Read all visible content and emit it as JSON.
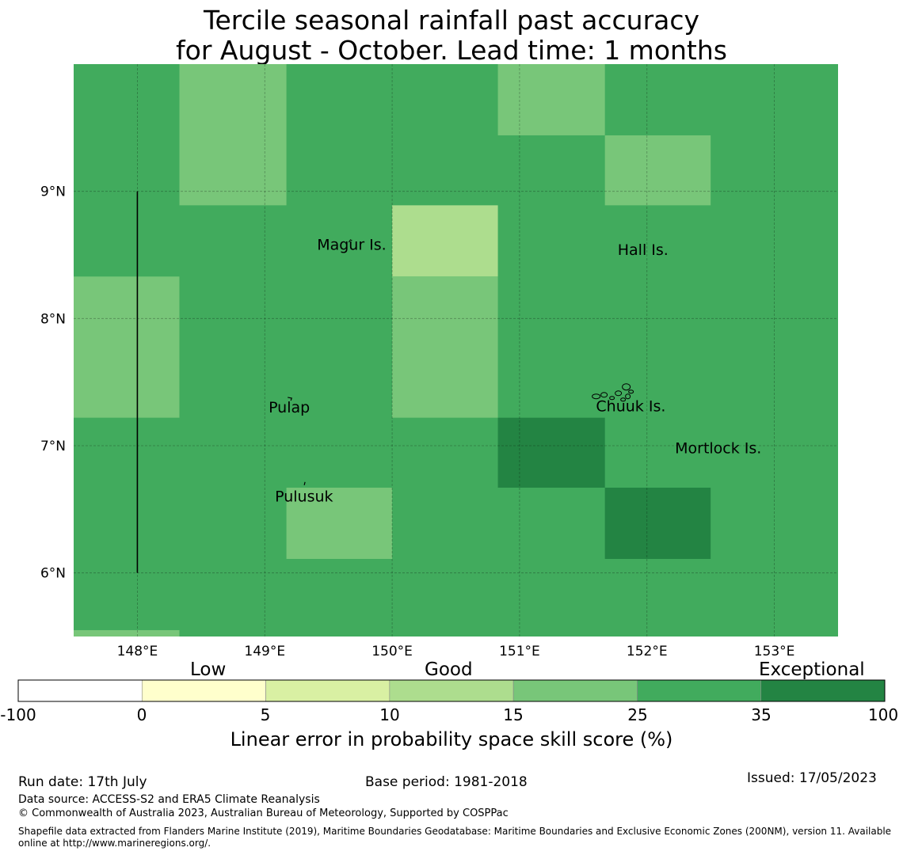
{
  "title_line1": "Tercile seasonal rainfall past accuracy",
  "title_line2": "for August - October. Lead time: 1 months",
  "map": {
    "lon_range": [
      147.5,
      153.5
    ],
    "lat_range": [
      5.5,
      10.0
    ],
    "x_ticks": [
      {
        "value": 148,
        "label": "148°E"
      },
      {
        "value": 149,
        "label": "149°E"
      },
      {
        "value": 150,
        "label": "150°E"
      },
      {
        "value": 151,
        "label": "151°E"
      },
      {
        "value": 152,
        "label": "152°E"
      },
      {
        "value": 153,
        "label": "153°E"
      }
    ],
    "y_ticks": [
      {
        "value": 9,
        "label": "9°N"
      },
      {
        "value": 8,
        "label": "8°N"
      },
      {
        "value": 7,
        "label": "7°N"
      },
      {
        "value": 6,
        "label": "6°N"
      }
    ],
    "background_color": "#41ab5d",
    "cells": [
      {
        "lon": [
          148.33,
          149.17
        ],
        "lat": [
          8.89,
          10.0
        ],
        "color": "#78c679"
      },
      {
        "lon": [
          150.83,
          151.67
        ],
        "lat": [
          9.44,
          10.0
        ],
        "color": "#78c679"
      },
      {
        "lon": [
          151.67,
          152.5
        ],
        "lat": [
          8.89,
          9.44
        ],
        "color": "#78c679"
      },
      {
        "lon": [
          150.0,
          150.83
        ],
        "lat": [
          8.33,
          8.89
        ],
        "color": "#addd8e"
      },
      {
        "lon": [
          150.0,
          150.83
        ],
        "lat": [
          7.22,
          8.33
        ],
        "color": "#78c679"
      },
      {
        "lon": [
          147.5,
          148.33
        ],
        "lat": [
          7.22,
          8.33
        ],
        "color": "#78c679"
      },
      {
        "lon": [
          150.83,
          151.67
        ],
        "lat": [
          6.67,
          7.22
        ],
        "color": "#238443"
      },
      {
        "lon": [
          151.67,
          152.5
        ],
        "lat": [
          6.11,
          6.67
        ],
        "color": "#238443"
      },
      {
        "lon": [
          149.17,
          150.0
        ],
        "lat": [
          6.11,
          6.67
        ],
        "color": "#78c679"
      },
      {
        "lon": [
          147.5,
          148.33
        ],
        "lat": [
          5.5,
          5.55
        ],
        "color": "#78c679"
      }
    ],
    "boundary_line": {
      "lon": 148.0,
      "lat": [
        6.0,
        9.0
      ]
    },
    "places": [
      {
        "name": "Magur Is.",
        "lon": 149.41,
        "lat": 8.54
      },
      {
        "name": "Hall Is.",
        "lon": 151.77,
        "lat": 8.5
      },
      {
        "name": "Pulap",
        "lon": 149.03,
        "lat": 7.26
      },
      {
        "name": "Chuuk Is.",
        "lon": 151.6,
        "lat": 7.27
      },
      {
        "name": "Mortlock Is.",
        "lon": 152.22,
        "lat": 6.94
      },
      {
        "name": "Pulusuk",
        "lon": 149.08,
        "lat": 6.56
      }
    ]
  },
  "colorbar": {
    "headers": [
      "Low",
      "Good",
      "Exceptional"
    ],
    "segments": [
      {
        "color": "#ffffff"
      },
      {
        "color": "#ffffcc"
      },
      {
        "color": "#d9f0a3"
      },
      {
        "color": "#addd8e"
      },
      {
        "color": "#78c679"
      },
      {
        "color": "#41ab5d"
      },
      {
        "color": "#238443"
      }
    ],
    "ticks": [
      "-100",
      "0",
      "5",
      "10",
      "15",
      "25",
      "35",
      "100"
    ],
    "label": "Linear error in probability space skill score (%)"
  },
  "footer": {
    "run_date": "Run date: 17th July",
    "base_period": "Base period: 1981-2018",
    "issued": "Issued: 17/05/2023",
    "data_source": "Data source: ACCESS-S2 and ERA5 Climate Reanalysis",
    "copyright": "© Commonwealth of Australia 2023, Australian Bureau of Meteorology, Supported by COSPPac",
    "shapefile_line1": "Shapefile data extracted from Flanders Marine Institute (2019), Maritime Boundaries Geodatabase: Maritime Boundaries and Exclusive Economic Zones (200NM), version 11. Available",
    "shapefile_line2": "online at http://www.marineregions.org/."
  }
}
